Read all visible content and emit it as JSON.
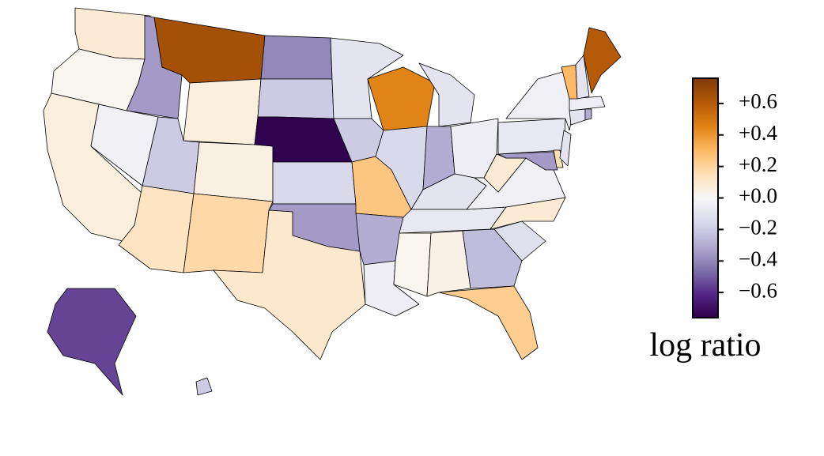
{
  "chart_data": {
    "type": "choropleth",
    "values": [
      0.08,
      0.02,
      0.06,
      -0.03,
      -0.35,
      0.65,
      0.06,
      -0.2,
      0.05,
      0.12,
      0.18,
      -0.4,
      -0.2,
      -0.75,
      -0.15,
      -0.35,
      0.1,
      -0.1,
      -0.2,
      0.25,
      -0.3,
      -0.05,
      0.45,
      -0.15,
      -0.1,
      -0.3,
      -0.05,
      -0.1,
      -0.08,
      0.02,
      0.04,
      -0.25,
      0.22,
      -0.12,
      0.08,
      -0.04,
      0.08,
      -0.08,
      -0.04,
      -0.35,
      0.15,
      -0.1,
      -0.1,
      -0.3,
      -0.05,
      0.3,
      -0.1,
      0.6,
      -0.55,
      -0.2
    ],
    "clim": [
      -0.76,
      0.76
    ],
    "colors": [
      "#2d004b",
      "#542788",
      "#8073ac",
      "#b2abd2",
      "#d8daeb",
      "#f7f7f7",
      "#fee0b6",
      "#fdb863",
      "#e08214",
      "#b35806",
      "#7f3b08"
    ],
    "ticks": [
      {
        "value": 0.6,
        "label": "+0.6"
      },
      {
        "value": 0.4,
        "label": "+0.4"
      },
      {
        "value": 0.2,
        "label": "+0.2"
      },
      {
        "value": 0.0,
        "label": "+0.0"
      },
      {
        "value": -0.2,
        "label": "−0.2"
      },
      {
        "value": -0.4,
        "label": "−0.4"
      },
      {
        "value": -0.6,
        "label": "−0.6"
      }
    ],
    "colorbar_label": "log ratio"
  }
}
